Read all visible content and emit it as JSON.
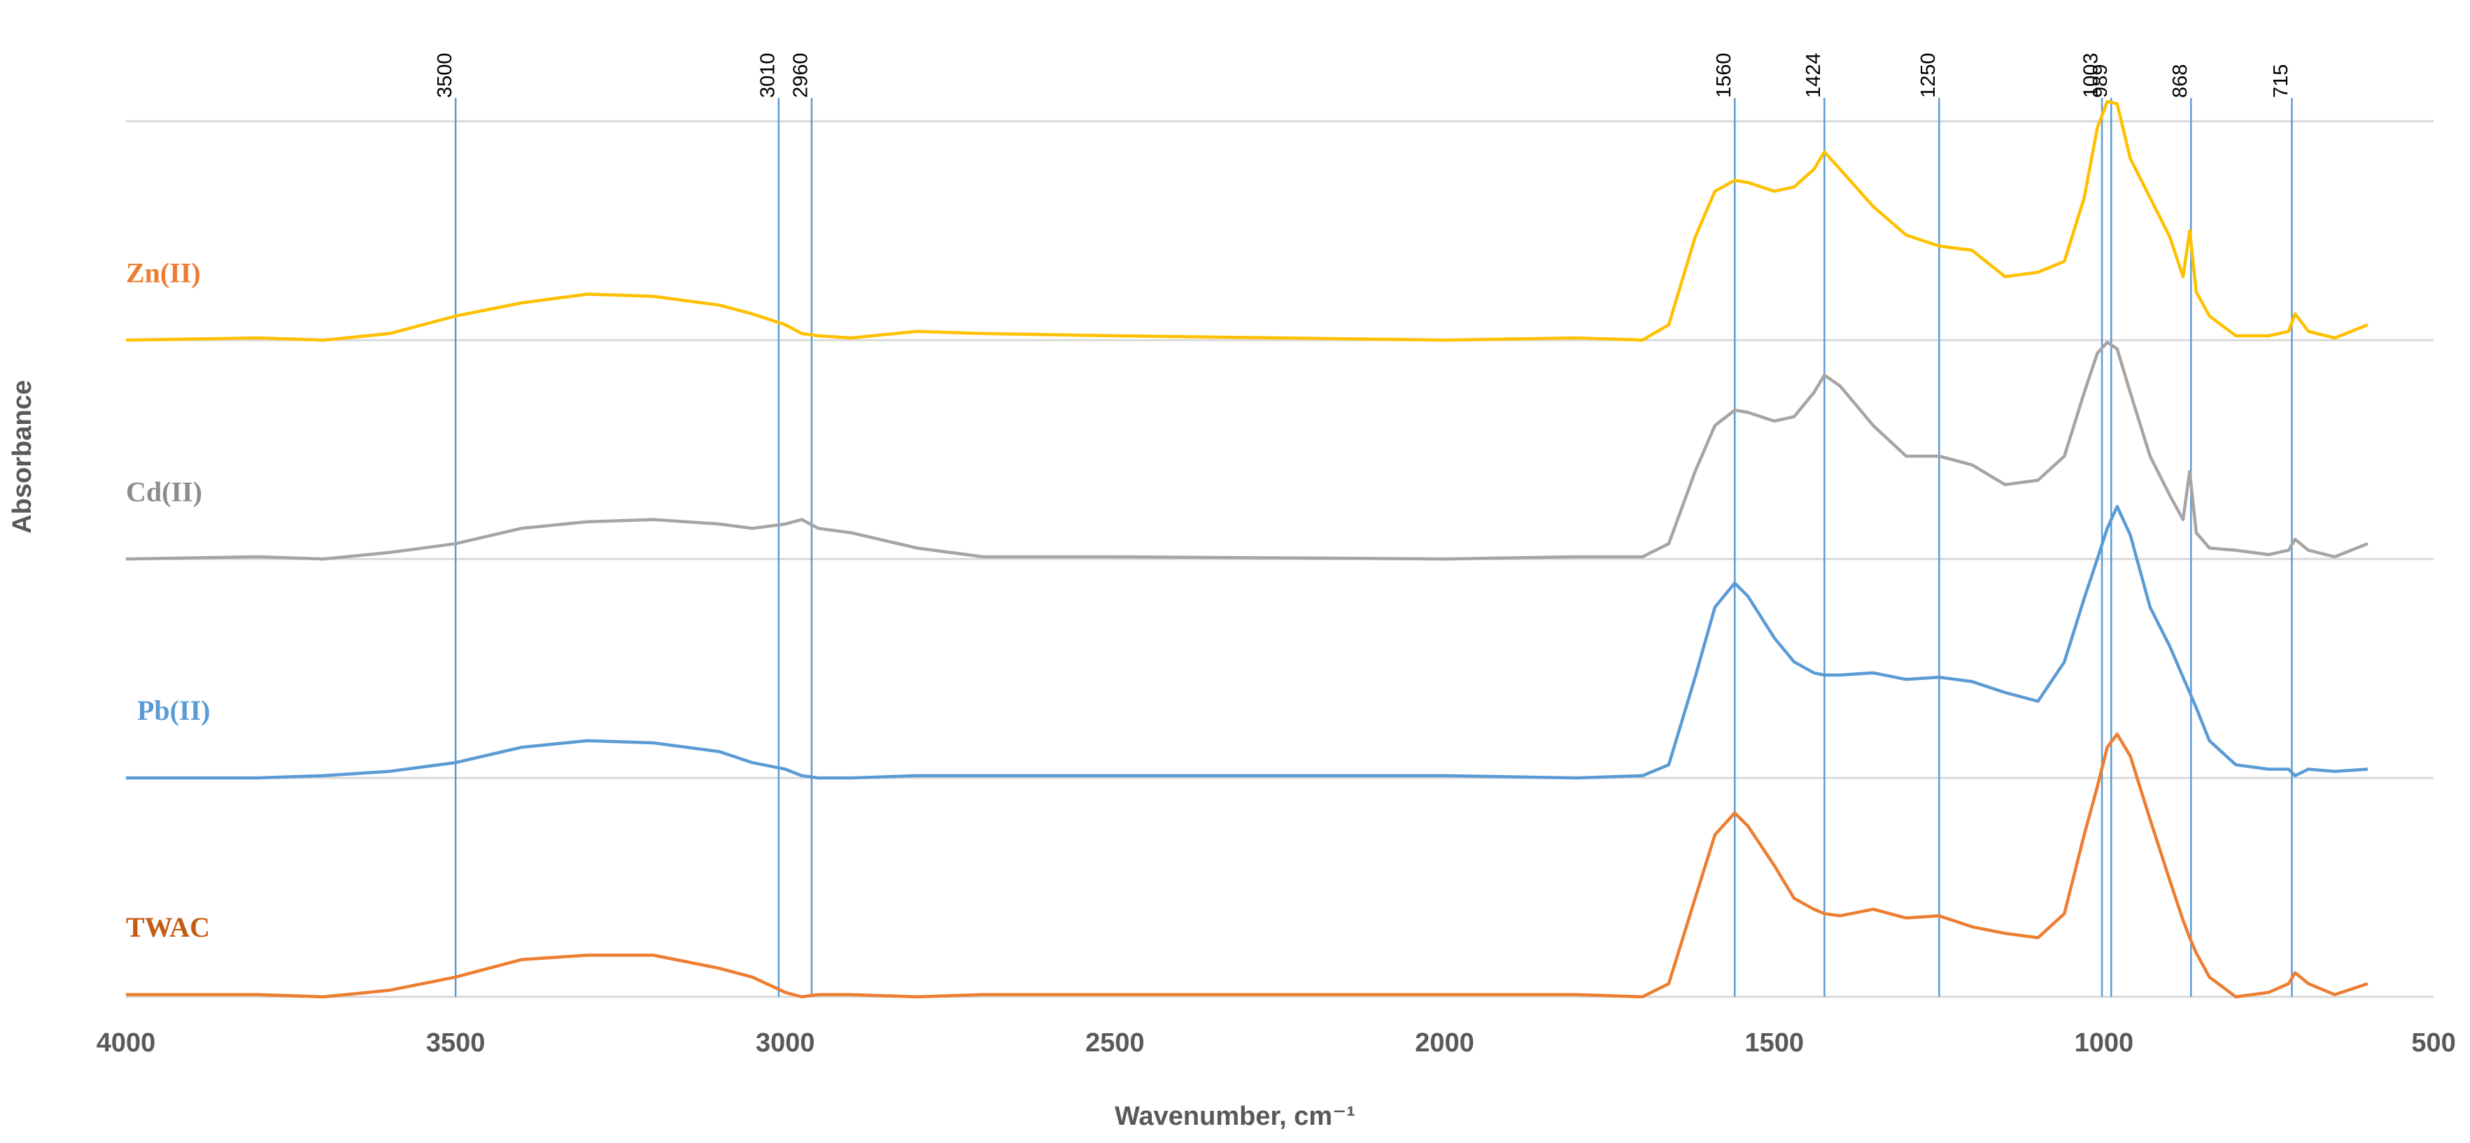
{
  "chart_data": {
    "type": "line",
    "y_label": "Absorbance",
    "x_label": "Wavenumber, cm⁻¹",
    "x": [
      4000,
      3800,
      3700,
      3600,
      3500,
      3400,
      3300,
      3200,
      3100,
      3050,
      3000,
      2975,
      2950,
      2900,
      2800,
      2700,
      2500,
      2000,
      1800,
      1700,
      1660,
      1620,
      1590,
      1560,
      1540,
      1500,
      1470,
      1440,
      1424,
      1400,
      1350,
      1300,
      1250,
      1200,
      1150,
      1100,
      1060,
      1030,
      1010,
      995,
      980,
      960,
      930,
      900,
      880,
      870,
      860,
      840,
      800,
      750,
      720,
      710,
      690,
      650,
      600
    ],
    "series": [
      {
        "name": "Zn(II)",
        "color": "#FFC000",
        "label_color": "#ED7D31",
        "values": [
          3.0,
          3.01,
          3.0,
          3.03,
          3.11,
          3.17,
          3.21,
          3.2,
          3.16,
          3.12,
          3.07,
          3.03,
          3.02,
          3.01,
          3.04,
          3.03,
          3.02,
          3.0,
          3.01,
          3.0,
          3.07,
          3.47,
          3.68,
          3.73,
          3.72,
          3.68,
          3.7,
          3.78,
          3.86,
          3.78,
          3.61,
          3.48,
          3.43,
          3.41,
          3.29,
          3.31,
          3.36,
          3.65,
          3.97,
          4.09,
          4.08,
          3.83,
          3.65,
          3.47,
          3.29,
          3.5,
          3.22,
          3.11,
          3.02,
          3.02,
          3.04,
          3.12,
          3.04,
          3.01,
          3.07
        ]
      },
      {
        "name": "Cd(II)",
        "color": "#A5A5A5",
        "label_color": "#8C8C8C",
        "values": [
          2.0,
          2.01,
          2.0,
          2.03,
          2.07,
          2.14,
          2.17,
          2.18,
          2.16,
          2.14,
          2.16,
          2.18,
          2.14,
          2.12,
          2.05,
          2.01,
          2.01,
          2.0,
          2.01,
          2.01,
          2.07,
          2.4,
          2.61,
          2.68,
          2.67,
          2.63,
          2.65,
          2.76,
          2.84,
          2.79,
          2.61,
          2.47,
          2.47,
          2.43,
          2.34,
          2.36,
          2.47,
          2.76,
          2.94,
          2.99,
          2.96,
          2.76,
          2.47,
          2.29,
          2.18,
          2.4,
          2.12,
          2.05,
          2.04,
          2.02,
          2.04,
          2.09,
          2.04,
          2.01,
          2.07
        ]
      },
      {
        "name": "Pb(II)",
        "color": "#5B9BD5",
        "label_color": "#5B9BD5",
        "values": [
          1.0,
          1.0,
          1.01,
          1.03,
          1.07,
          1.14,
          1.17,
          1.16,
          1.12,
          1.07,
          1.04,
          1.01,
          1.0,
          1.0,
          1.01,
          1.01,
          1.01,
          1.01,
          1.0,
          1.01,
          1.06,
          1.46,
          1.78,
          1.89,
          1.83,
          1.64,
          1.53,
          1.48,
          1.47,
          1.47,
          1.48,
          1.45,
          1.46,
          1.44,
          1.39,
          1.35,
          1.53,
          1.82,
          2.0,
          2.14,
          2.24,
          2.11,
          1.78,
          1.6,
          1.46,
          1.39,
          1.32,
          1.17,
          1.06,
          1.04,
          1.04,
          1.01,
          1.04,
          1.03,
          1.04
        ]
      },
      {
        "name": "TWAC",
        "color": "#ED7D31",
        "label_color": "#C55A11",
        "values": [
          0.01,
          0.01,
          0.0,
          0.03,
          0.09,
          0.17,
          0.19,
          0.19,
          0.13,
          0.09,
          0.02,
          0.0,
          0.01,
          0.01,
          0.0,
          0.01,
          0.01,
          0.01,
          0.01,
          0.0,
          0.06,
          0.45,
          0.74,
          0.84,
          0.78,
          0.6,
          0.45,
          0.4,
          0.38,
          0.37,
          0.4,
          0.36,
          0.37,
          0.32,
          0.29,
          0.27,
          0.38,
          0.74,
          0.96,
          1.14,
          1.2,
          1.1,
          0.81,
          0.53,
          0.35,
          0.27,
          0.2,
          0.09,
          0.0,
          0.02,
          0.06,
          0.11,
          0.06,
          0.01,
          0.06
        ]
      }
    ],
    "xlim": [
      4000,
      500
    ],
    "xticks": [
      4000,
      3500,
      3000,
      2500,
      2000,
      1500,
      1000,
      500
    ],
    "ylim": [
      0,
      4.1
    ],
    "yticks": [
      0,
      1,
      2,
      3,
      4
    ],
    "grid": true,
    "vlines": [
      3500,
      3010,
      2960,
      1560,
      1424,
      1250,
      1003,
      989,
      868,
      715
    ],
    "vline_color": "#5B9BD5"
  }
}
